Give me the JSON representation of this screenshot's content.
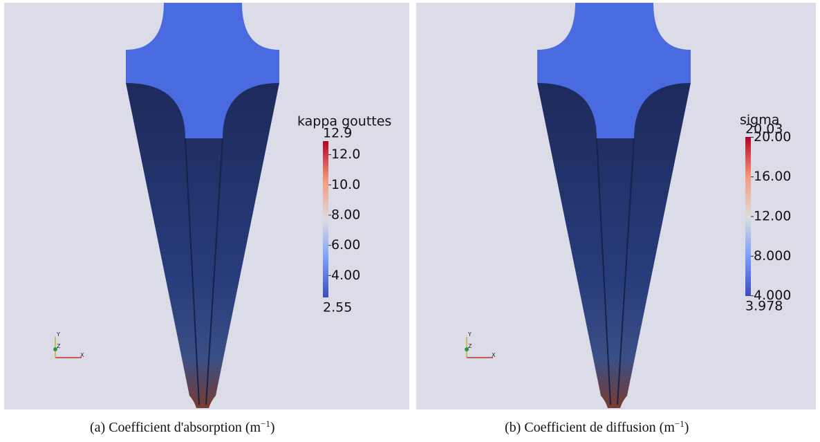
{
  "panels": [
    {
      "colorbar": {
        "title": "kappa gouttes",
        "min": 2.55,
        "max": 12.9,
        "ticks": [
          {
            "value": 12,
            "label": "12.0"
          },
          {
            "value": 10,
            "label": "10.0"
          },
          {
            "value": 8,
            "label": "8.00"
          },
          {
            "value": 6,
            "label": "6.00"
          },
          {
            "value": 4,
            "label": "4.00"
          }
        ]
      },
      "axes": {
        "x": "X",
        "y": "Y",
        "z": "Z"
      },
      "caption": {
        "text": "(a)  Coefficient d'absorption (m",
        "sup": "−1",
        "end": ")"
      }
    },
    {
      "colorbar": {
        "title": "sigma",
        "min": 3.978,
        "max": 20.03,
        "ticks": [
          {
            "value": 20,
            "label": "20.00"
          },
          {
            "value": 16,
            "label": "16.00"
          },
          {
            "value": 12,
            "label": "12.00"
          },
          {
            "value": 8,
            "label": "8.000"
          },
          {
            "value": 4,
            "label": "4.000"
          }
        ]
      },
      "axes": {
        "x": "X",
        "y": "Y",
        "z": "Z"
      },
      "caption": {
        "text": "(b)  Coefficient de diffusion (m",
        "sup": "−1",
        "end": ")"
      }
    }
  ]
}
